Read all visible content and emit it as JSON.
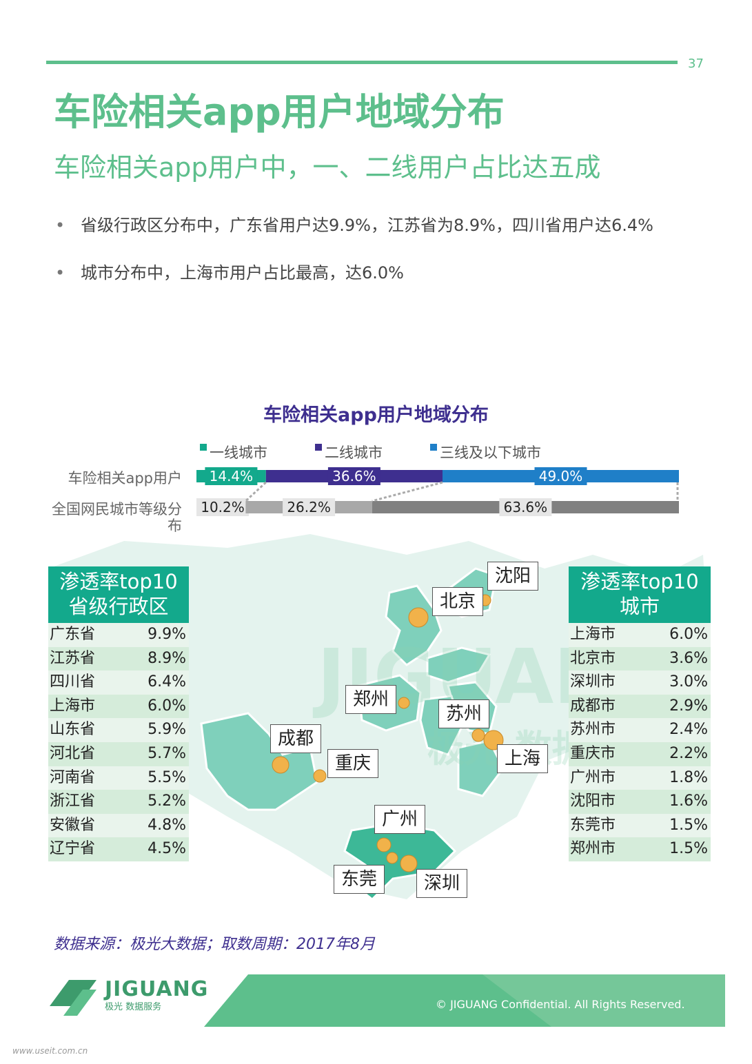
{
  "page_number": "37",
  "title": "车险相关app用户地域分布",
  "subtitle": "车险相关app用户中，一、二线用户占比达五成",
  "bullets": [
    "省级行政区分布中，广东省用户达9.9%，江苏省为8.9%，四川省用户达6.4%",
    "城市分布中，上海市用户占比最高，达6.0%"
  ],
  "bullet_symbol": "•",
  "colors": {
    "brand_green": "#5dbf8c",
    "teal": "#13a98c",
    "purple": "#3e2f8f",
    "blue": "#1f7fc8",
    "gray": "#888888"
  },
  "chart_data": [
    {
      "type": "bar",
      "stacked": true,
      "orientation": "horizontal",
      "title": "车险相关app用户地域分布",
      "categories": [
        "车险相关app用户",
        "全国网民城市等级分布"
      ],
      "legend_position": "top",
      "series": [
        {
          "name": "一线城市",
          "color": "#13a98c",
          "values": [
            14.4,
            10.2
          ],
          "labels": [
            "14.4%",
            "10.2%"
          ]
        },
        {
          "name": "二线城市",
          "color": "#3e2f8f",
          "values": [
            36.6,
            26.2
          ],
          "labels": [
            "36.6%",
            "26.2%"
          ]
        },
        {
          "name": "三线及以下城市",
          "color": "#1f7fc8",
          "values": [
            49.0,
            63.6
          ],
          "labels": [
            "49.0%",
            "63.6%"
          ]
        }
      ],
      "xlim": [
        0,
        100
      ]
    },
    {
      "type": "table",
      "title": "渗透率top10省级行政区",
      "title_lines": [
        "渗透率top10",
        "省级行政区"
      ],
      "rows": [
        {
          "name": "广东省",
          "value": "9.9%"
        },
        {
          "name": "江苏省",
          "value": "8.9%"
        },
        {
          "name": "四川省",
          "value": "6.4%"
        },
        {
          "name": "上海市",
          "value": "6.0%"
        },
        {
          "name": "山东省",
          "value": "5.9%"
        },
        {
          "name": "河北省",
          "value": "5.7%"
        },
        {
          "name": "河南省",
          "value": "5.5%"
        },
        {
          "name": "浙江省",
          "value": "5.2%"
        },
        {
          "name": "安徽省",
          "value": "4.8%"
        },
        {
          "name": "辽宁省",
          "value": "4.5%"
        }
      ]
    },
    {
      "type": "table",
      "title": "渗透率top10城市",
      "title_lines": [
        "渗透率top10",
        "城市"
      ],
      "rows": [
        {
          "name": "上海市",
          "value": "6.0%"
        },
        {
          "name": "北京市",
          "value": "3.6%"
        },
        {
          "name": "深圳市",
          "value": "3.0%"
        },
        {
          "name": "成都市",
          "value": "2.9%"
        },
        {
          "name": "苏州市",
          "value": "2.4%"
        },
        {
          "name": "重庆市",
          "value": "2.2%"
        },
        {
          "name": "广州市",
          "value": "1.8%"
        },
        {
          "name": "沈阳市",
          "value": "1.6%"
        },
        {
          "name": "东莞市",
          "value": "1.5%"
        },
        {
          "name": "郑州市",
          "value": "1.5%"
        }
      ]
    }
  ],
  "map_labels": [
    "沈阳",
    "北京",
    "郑州",
    "苏州",
    "成都",
    "重庆",
    "上海",
    "广州",
    "东莞",
    "深圳"
  ],
  "watermark": {
    "brand": "JIGUANG",
    "sub": "极光 数据服务"
  },
  "source": "数据来源：极光大数据；取数周期：2017年8月",
  "footer": {
    "logo_text": "JIGUANG",
    "logo_sub": "极光 数据服务",
    "copyright": "© JIGUANG Confidential. All Rights Reserved."
  },
  "site_watermark": "www.useit.com.cn"
}
